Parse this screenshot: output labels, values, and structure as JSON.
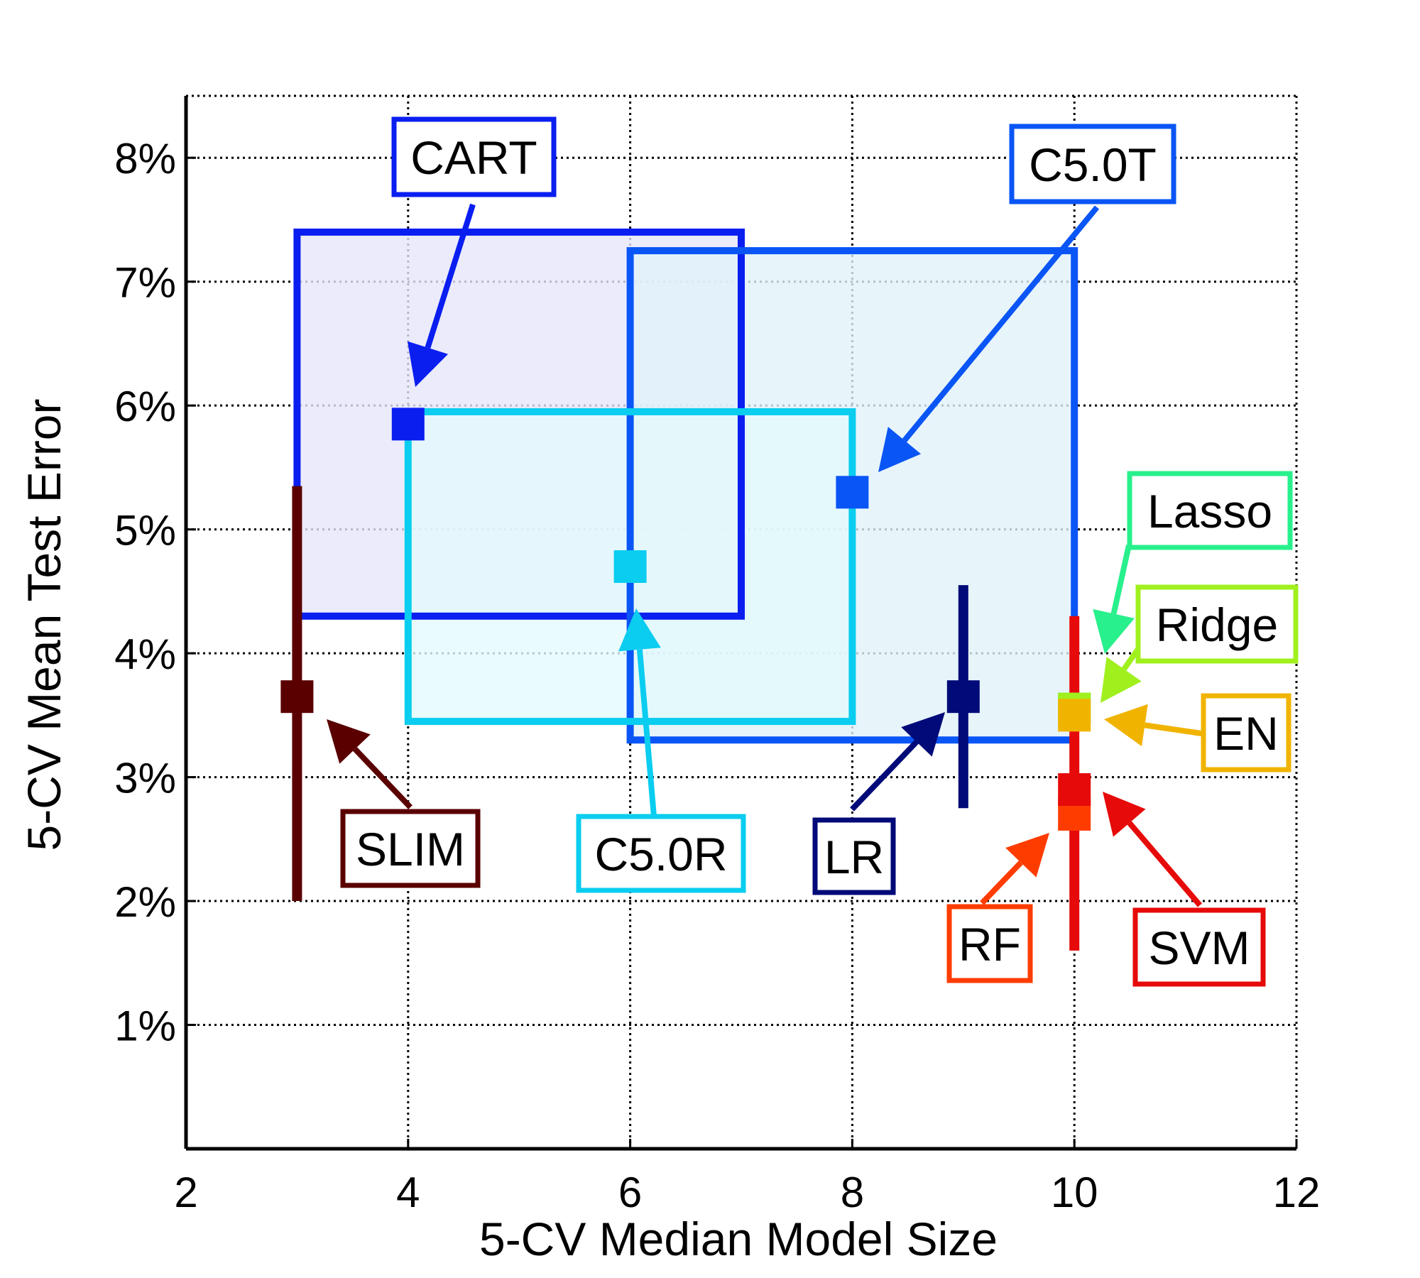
{
  "chart_data": {
    "type": "scatter",
    "title": "",
    "xlabel": "5-CV Median Model Size",
    "ylabel": "5-CV Mean Test Error",
    "xlim": [
      2,
      12
    ],
    "ylim": [
      0,
      8.5
    ],
    "xticks": [
      "2",
      "4",
      "6",
      "8",
      "10",
      "12"
    ],
    "yticks": [
      "1%",
      "2%",
      "3%",
      "4%",
      "5%",
      "6%",
      "7%",
      "8%"
    ],
    "grid": true,
    "series": [
      {
        "name": "CART",
        "color": "#0a1ef0",
        "x": 4,
        "y": 5.85,
        "xrange": [
          3,
          7
        ],
        "yrange": [
          4.3,
          7.4
        ],
        "fill": "#e6e6fa"
      },
      {
        "name": "C5.0T",
        "color": "#0a55f5",
        "x": 8,
        "y": 5.3,
        "xrange": [
          6,
          10
        ],
        "yrange": [
          3.3,
          7.25
        ],
        "fill": "#e1f3fa"
      },
      {
        "name": "C5.0R",
        "color": "#0acdf0",
        "x": 6,
        "y": 4.7,
        "xrange": [
          4,
          8
        ],
        "yrange": [
          3.45,
          5.95
        ],
        "fill": "#e4fafc"
      },
      {
        "name": "SLIM",
        "color": "#5a0000",
        "x": 3,
        "y": 3.65,
        "yrange": [
          2.0,
          5.35
        ]
      },
      {
        "name": "LR",
        "color": "#000a78",
        "x": 9,
        "y": 3.65,
        "yrange": [
          2.75,
          4.55
        ]
      },
      {
        "name": "Lasso",
        "color": "#28f08c",
        "x": 10,
        "y": 3.55
      },
      {
        "name": "Ridge",
        "color": "#a0f01e",
        "x": 10,
        "y": 3.55
      },
      {
        "name": "EN",
        "color": "#f0b400",
        "x": 10,
        "y": 3.5
      },
      {
        "name": "RF",
        "color": "#ff3c00",
        "x": 10,
        "y": 2.7
      },
      {
        "name": "SVM",
        "color": "#e60a0a",
        "x": 10,
        "y": 2.9,
        "yrange": [
          1.6,
          4.3
        ]
      }
    ]
  }
}
